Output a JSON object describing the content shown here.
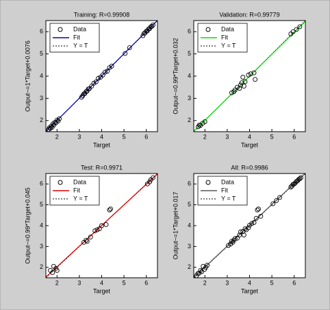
{
  "chart_data": [
    {
      "type": "scatter",
      "title": "Training: R=0.99908",
      "xlabel": "Target",
      "ylabel": "Output~=1*Target+0.0076",
      "xlim": [
        1.5,
        6.5
      ],
      "ylim": [
        1.5,
        6.5
      ],
      "xticks": [
        2,
        3,
        4,
        5,
        6
      ],
      "yticks": [
        2,
        3,
        4,
        5,
        6
      ],
      "legend": "upper left",
      "series": [
        {
          "name": "Data",
          "color": "#000000",
          "linestyle": "none",
          "x": [
            1.62,
            1.66,
            1.7,
            1.74,
            1.78,
            1.82,
            1.86,
            1.9,
            1.95,
            2.0,
            2.05,
            2.1,
            3.1,
            3.15,
            3.2,
            3.25,
            3.3,
            3.35,
            3.4,
            3.45,
            3.55,
            3.65,
            3.75,
            3.85,
            3.95,
            4.05,
            4.15,
            4.25,
            4.35,
            4.45,
            5.05,
            5.25,
            5.85,
            5.9,
            5.95,
            6.0,
            6.05,
            6.1,
            6.15,
            6.2,
            6.25,
            6.3
          ],
          "values": [
            1.6,
            1.68,
            1.65,
            1.75,
            1.7,
            1.85,
            1.8,
            1.92,
            1.9,
            2.02,
            1.98,
            2.08,
            3.05,
            3.12,
            3.2,
            3.22,
            3.3,
            3.33,
            3.42,
            3.44,
            3.55,
            3.68,
            3.74,
            3.9,
            3.95,
            4.05,
            4.18,
            4.22,
            4.38,
            4.45,
            5.02,
            5.28,
            5.82,
            5.92,
            5.95,
            6.02,
            6.04,
            6.12,
            6.14,
            6.22,
            6.24,
            6.3
          ]
        },
        {
          "name": "Fit",
          "color": "#0000b0",
          "linestyle": "solid",
          "x": [
            1.5,
            6.5
          ],
          "values": [
            1.5076,
            6.5076
          ]
        },
        {
          "name": "Y = T",
          "color": "#000000",
          "linestyle": "dotted",
          "x": [
            1.5,
            6.5
          ],
          "values": [
            1.5,
            6.5
          ]
        }
      ]
    },
    {
      "type": "scatter",
      "title": "Validation: R=0.99779",
      "xlabel": "Target",
      "ylabel": "Output~=0.99*Target+0.032",
      "xlim": [
        1.5,
        6.5
      ],
      "ylim": [
        1.5,
        6.5
      ],
      "xticks": [
        2,
        3,
        4,
        5,
        6
      ],
      "yticks": [
        2,
        3,
        4,
        5,
        6
      ],
      "legend": "upper left",
      "series": [
        {
          "name": "Data",
          "color": "#000000",
          "linestyle": "none",
          "x": [
            1.7,
            1.75,
            1.8,
            1.9,
            2.0,
            3.2,
            3.3,
            3.35,
            3.45,
            3.55,
            3.6,
            3.65,
            3.7,
            3.75,
            3.8,
            3.95,
            4.05,
            4.2,
            4.25,
            5.85,
            5.95,
            6.1,
            6.25
          ],
          "values": [
            1.72,
            1.8,
            1.78,
            1.88,
            1.95,
            3.25,
            3.3,
            3.38,
            3.5,
            3.45,
            3.6,
            3.7,
            3.95,
            3.55,
            3.75,
            4.05,
            4.1,
            4.15,
            3.85,
            5.9,
            6.0,
            6.1,
            6.22
          ]
        },
        {
          "name": "Fit",
          "color": "#00dd00",
          "linestyle": "solid",
          "x": [
            1.5,
            6.5
          ],
          "values": [
            1.517,
            6.467
          ]
        },
        {
          "name": "Y = T",
          "color": "#000000",
          "linestyle": "dotted",
          "x": [
            1.5,
            6.5
          ],
          "values": [
            1.5,
            6.5
          ]
        }
      ]
    },
    {
      "type": "scatter",
      "title": "Test: R=0.9971",
      "xlabel": "Target",
      "ylabel": "Output~=0.99*Target+0.045",
      "xlim": [
        1.5,
        6.5
      ],
      "ylim": [
        1.5,
        6.5
      ],
      "xticks": [
        2,
        3,
        4,
        5,
        6
      ],
      "yticks": [
        2,
        3,
        4,
        5,
        6
      ],
      "legend": "upper left",
      "series": [
        {
          "name": "Data",
          "color": "#000000",
          "linestyle": "none",
          "x": [
            1.7,
            1.8,
            1.85,
            1.95,
            2.0,
            3.2,
            3.3,
            3.35,
            3.5,
            3.7,
            3.8,
            3.9,
            4.0,
            4.2,
            4.35,
            4.4,
            6.05,
            6.15,
            6.2,
            6.3
          ],
          "values": [
            1.85,
            1.75,
            2.05,
            1.95,
            1.85,
            3.2,
            3.3,
            3.25,
            3.45,
            3.75,
            3.8,
            3.85,
            4.0,
            4.05,
            4.75,
            4.8,
            6.0,
            6.1,
            6.2,
            6.3
          ]
        },
        {
          "name": "Fit",
          "color": "#dd0000",
          "linestyle": "solid",
          "x": [
            1.5,
            6.5
          ],
          "values": [
            1.53,
            6.48
          ]
        },
        {
          "name": "Y = T",
          "color": "#000000",
          "linestyle": "dotted",
          "x": [
            1.5,
            6.5
          ],
          "values": [
            1.5,
            6.5
          ]
        }
      ]
    },
    {
      "type": "scatter",
      "title": "All: R=0.9986",
      "xlabel": "Target",
      "ylabel": "Output~=1*Target+0.017",
      "xlim": [
        1.5,
        6.5
      ],
      "ylim": [
        1.5,
        6.5
      ],
      "xticks": [
        2,
        3,
        4,
        5,
        6
      ],
      "yticks": [
        2,
        3,
        4,
        5,
        6
      ],
      "legend": "upper left",
      "series": [
        {
          "name": "Data",
          "color": "#000000",
          "linestyle": "none",
          "x": [
            1.62,
            1.68,
            1.74,
            1.8,
            1.86,
            1.92,
            1.98,
            2.04,
            2.1,
            3.05,
            3.15,
            3.2,
            3.25,
            3.3,
            3.35,
            3.45,
            3.55,
            3.6,
            3.7,
            3.75,
            3.8,
            3.85,
            3.95,
            4.0,
            4.1,
            4.2,
            4.3,
            4.35,
            4.4,
            4.5,
            5.05,
            5.2,
            5.35,
            5.85,
            5.9,
            5.95,
            6.0,
            6.05,
            6.1,
            6.15,
            6.2,
            6.25,
            6.3
          ],
          "values": [
            1.6,
            1.7,
            1.72,
            1.85,
            1.8,
            2.05,
            1.9,
            2.0,
            2.1,
            3.05,
            3.12,
            3.25,
            3.2,
            3.3,
            3.38,
            3.4,
            3.55,
            3.7,
            3.72,
            3.55,
            3.85,
            3.8,
            3.9,
            4.02,
            4.1,
            4.15,
            4.35,
            4.75,
            4.8,
            4.45,
            5.05,
            5.2,
            5.35,
            5.85,
            5.9,
            5.98,
            6.0,
            6.05,
            6.12,
            6.15,
            6.22,
            6.25,
            6.3
          ]
        },
        {
          "name": "Fit",
          "color": "#555555",
          "linestyle": "solid",
          "x": [
            1.5,
            6.5
          ],
          "values": [
            1.517,
            6.517
          ]
        },
        {
          "name": "Y = T",
          "color": "#000000",
          "linestyle": "dotted",
          "x": [
            1.5,
            6.5
          ],
          "values": [
            1.5,
            6.5
          ]
        }
      ]
    }
  ]
}
